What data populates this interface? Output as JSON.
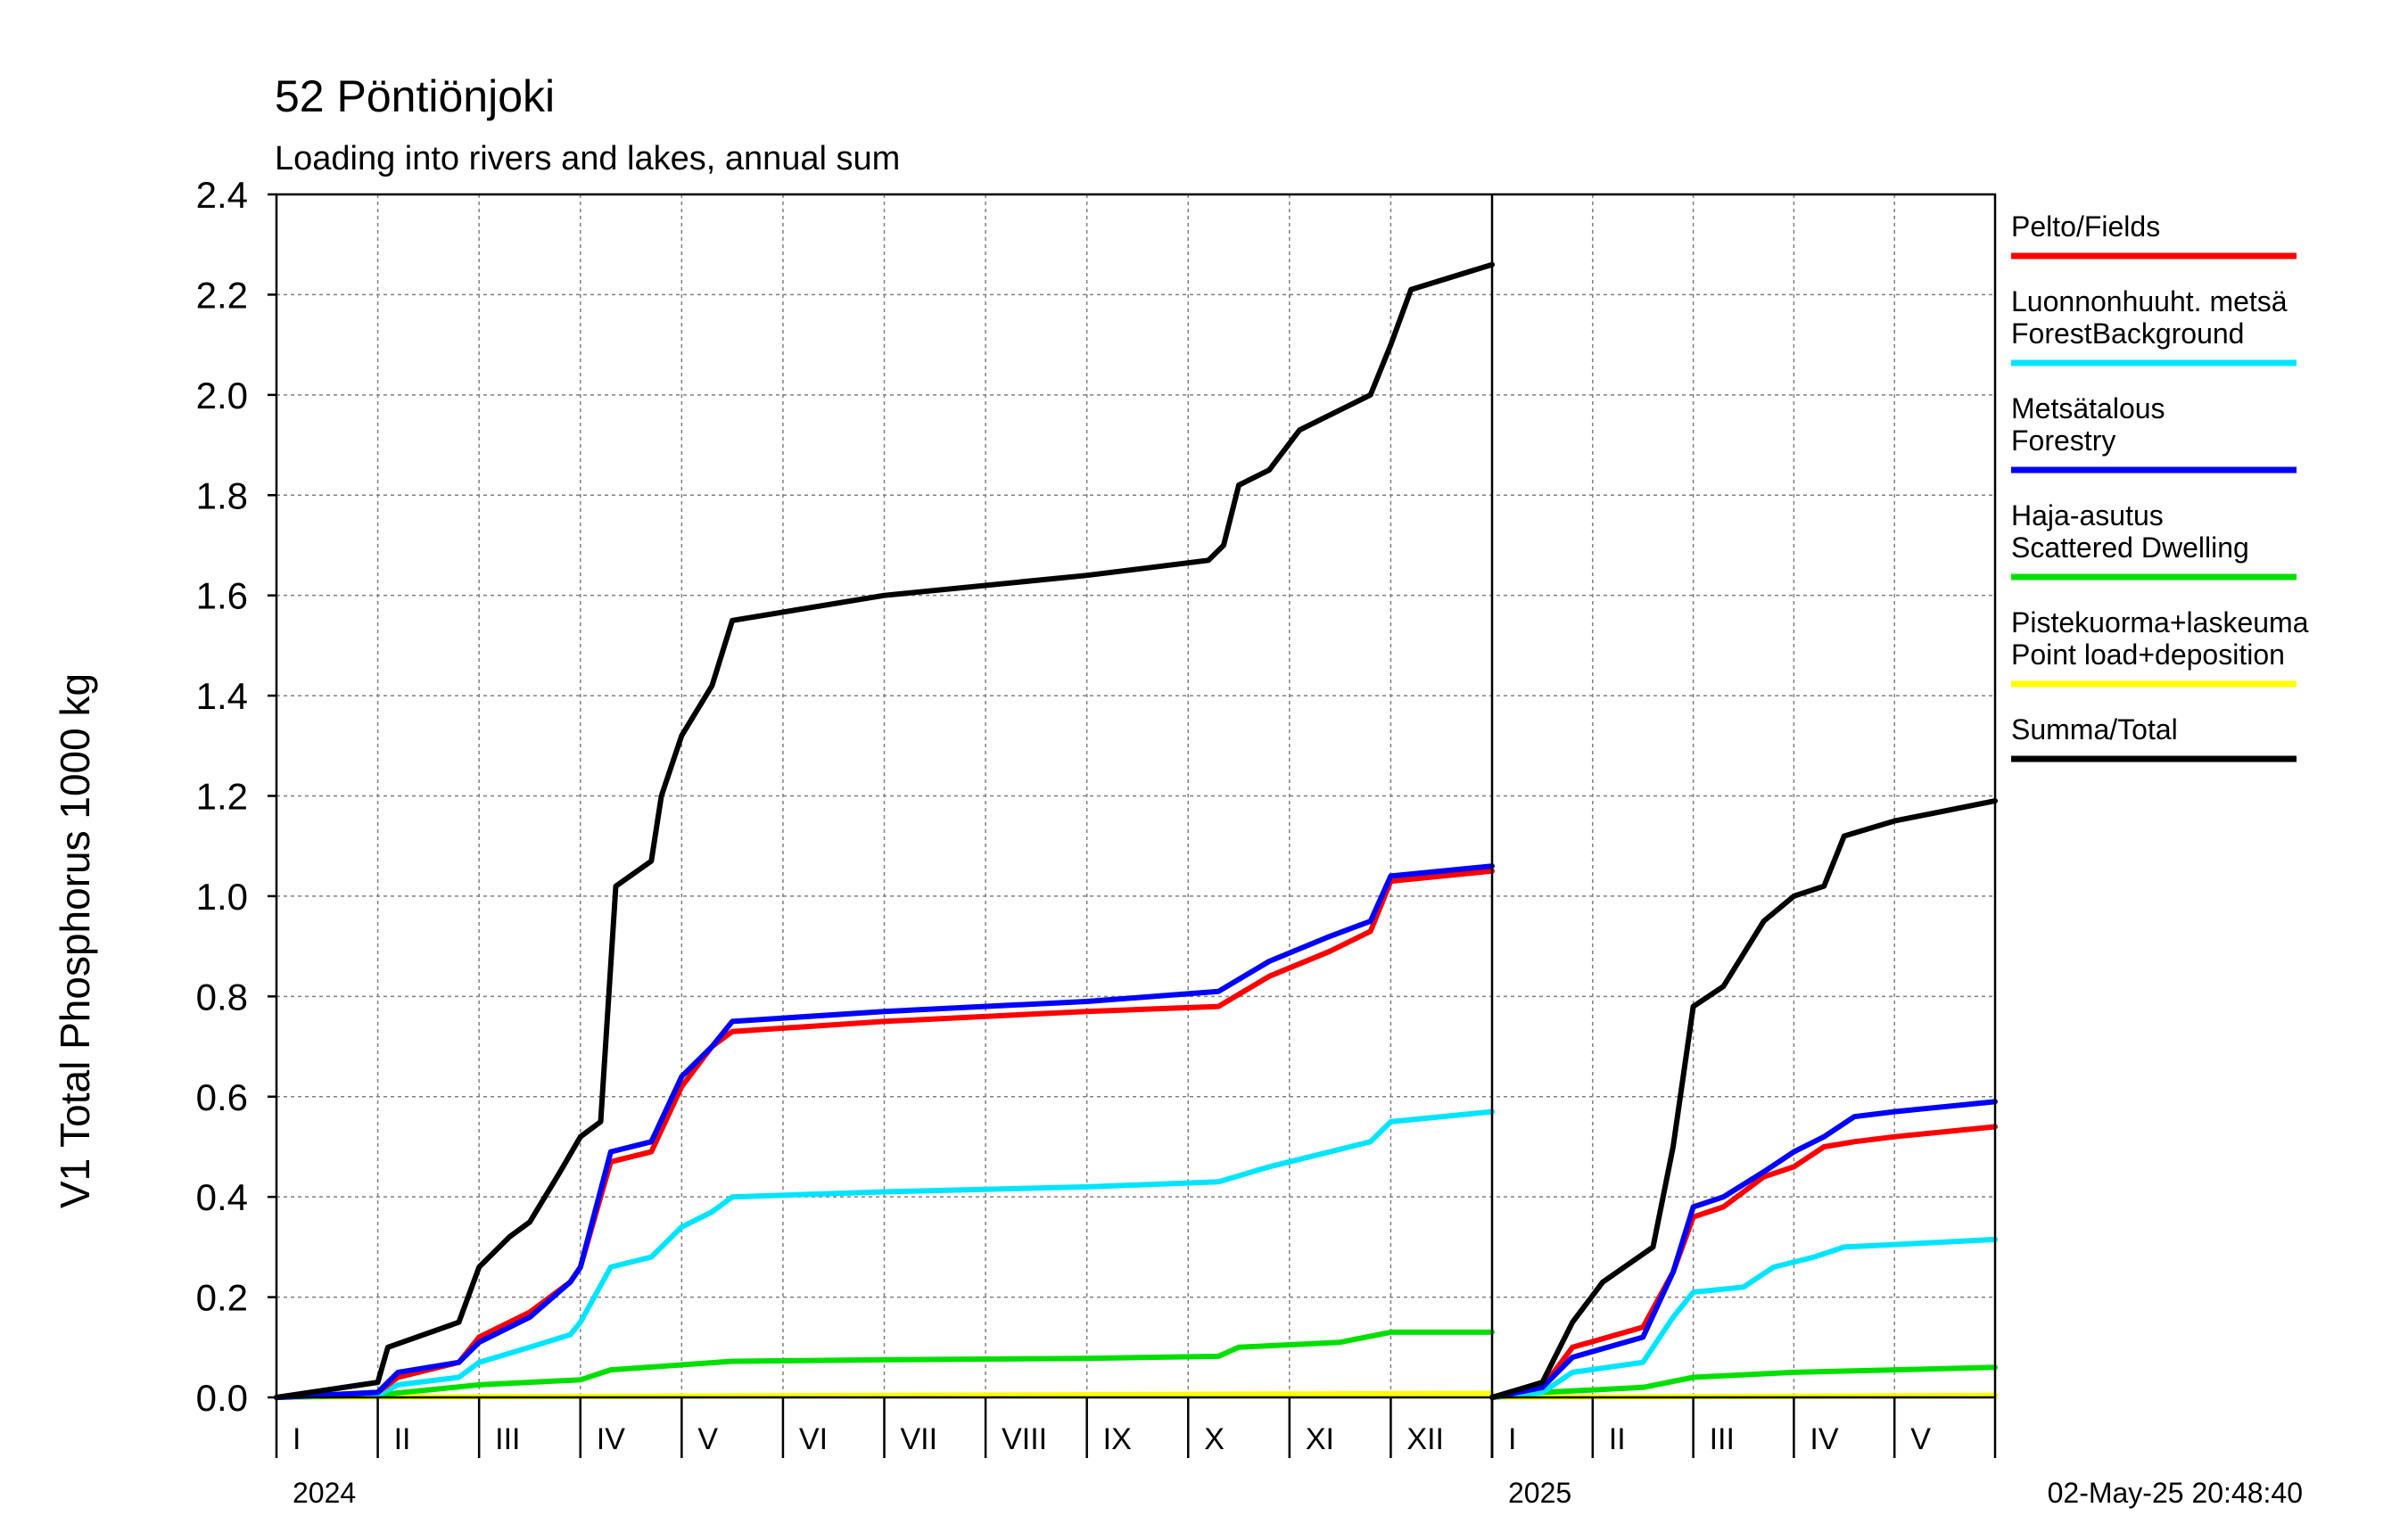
{
  "chart_data": {
    "type": "line",
    "title": "52 Pöntiönjoki",
    "subtitle": "Loading into rivers and lakes, annual sum",
    "ylabel": "V1 Total Phosphorus 1000 kg",
    "ylim": [
      0,
      2.4
    ],
    "yticks": [
      "0.0",
      "0.2",
      "0.4",
      "0.6",
      "0.8",
      "1.0",
      "1.2",
      "1.4",
      "1.6",
      "1.8",
      "2.0",
      "2.2",
      "2.4"
    ],
    "grid": true,
    "legend_position": "right",
    "timestamp": "02-May-25 20:48:40",
    "panels": [
      {
        "year": "2024",
        "months": [
          "I",
          "II",
          "III",
          "IV",
          "V",
          "VI",
          "VII",
          "VIII",
          "IX",
          "X",
          "XI",
          "XII"
        ],
        "series": [
          {
            "key": "fields",
            "x": [
              0,
              1,
              1.2,
              1.8,
              2.0,
              2.5,
              2.9,
              3.0,
              3.3,
              3.7,
              4.0,
              4.3,
              4.5,
              6,
              8,
              9.3,
              9.8,
              10.4,
              10.8,
              11,
              12
            ],
            "y": [
              0,
              0.01,
              0.04,
              0.07,
              0.12,
              0.17,
              0.23,
              0.26,
              0.47,
              0.49,
              0.62,
              0.7,
              0.73,
              0.75,
              0.77,
              0.78,
              0.84,
              0.89,
              0.93,
              1.03,
              1.05
            ]
          },
          {
            "key": "forest_background",
            "x": [
              0,
              1,
              1.2,
              1.8,
              2.0,
              2.5,
              2.9,
              3.0,
              3.3,
              3.7,
              4.0,
              4.3,
              4.5,
              6,
              8,
              9.3,
              9.8,
              10.4,
              10.8,
              11,
              12
            ],
            "y": [
              0,
              0.005,
              0.025,
              0.04,
              0.07,
              0.1,
              0.125,
              0.15,
              0.26,
              0.28,
              0.34,
              0.37,
              0.4,
              0.41,
              0.42,
              0.43,
              0.46,
              0.49,
              0.51,
              0.55,
              0.57
            ]
          },
          {
            "key": "forestry",
            "x": [
              0,
              1,
              1.2,
              1.8,
              2.0,
              2.5,
              2.9,
              3.0,
              3.3,
              3.7,
              4.0,
              4.3,
              4.5,
              6,
              8,
              9.3,
              9.8,
              10.4,
              10.8,
              11,
              12
            ],
            "y": [
              0,
              0.01,
              0.05,
              0.07,
              0.11,
              0.16,
              0.23,
              0.26,
              0.49,
              0.51,
              0.64,
              0.7,
              0.75,
              0.77,
              0.79,
              0.81,
              0.87,
              0.92,
              0.95,
              1.04,
              1.06
            ]
          },
          {
            "key": "scattered_dwelling",
            "x": [
              0,
              1,
              1.5,
              2,
              3,
              3.3,
              4,
              4.5,
              6,
              8,
              9.3,
              9.5,
              10.5,
              11,
              12
            ],
            "y": [
              0,
              0.005,
              0.015,
              0.025,
              0.035,
              0.055,
              0.065,
              0.072,
              0.075,
              0.078,
              0.082,
              0.1,
              0.11,
              0.13,
              0.13
            ]
          },
          {
            "key": "point_load",
            "x": [
              0,
              3,
              6,
              9,
              12
            ],
            "y": [
              0,
              0.002,
              0.004,
              0.006,
              0.008
            ]
          },
          {
            "key": "total",
            "x": [
              0,
              1,
              1.1,
              1.8,
              2.0,
              2.3,
              2.5,
              2.8,
              3.0,
              3.2,
              3.35,
              3.7,
              3.8,
              4.0,
              4.3,
              4.5,
              6,
              8,
              9.2,
              9.35,
              9.5,
              9.8,
              10.1,
              10.5,
              10.8,
              11,
              11.2,
              12
            ],
            "y": [
              0,
              0.03,
              0.1,
              0.15,
              0.26,
              0.32,
              0.35,
              0.45,
              0.52,
              0.55,
              1.02,
              1.07,
              1.2,
              1.32,
              1.42,
              1.55,
              1.6,
              1.64,
              1.67,
              1.7,
              1.82,
              1.85,
              1.93,
              1.97,
              2.0,
              2.1,
              2.21,
              2.26
            ]
          }
        ]
      },
      {
        "year": "2025",
        "months": [
          "I",
          "II",
          "III",
          "IV",
          "V"
        ],
        "series": [
          {
            "key": "fields",
            "x": [
              0,
              0.5,
              0.8,
              1.5,
              1.8,
              2.0,
              2.3,
              2.7,
              3.0,
              3.3,
              3.6,
              4.0,
              5.0
            ],
            "y": [
              0,
              0.02,
              0.1,
              0.14,
              0.25,
              0.36,
              0.38,
              0.44,
              0.46,
              0.5,
              0.51,
              0.52,
              0.54
            ]
          },
          {
            "key": "forest_background",
            "x": [
              0,
              0.5,
              0.8,
              1.5,
              1.8,
              2.0,
              2.5,
              2.8,
              3.2,
              3.5,
              4.0,
              5.0
            ],
            "y": [
              0,
              0.01,
              0.05,
              0.07,
              0.16,
              0.21,
              0.22,
              0.26,
              0.28,
              0.3,
              0.305,
              0.315
            ]
          },
          {
            "key": "forestry",
            "x": [
              0,
              0.5,
              0.8,
              1.5,
              1.8,
              2.0,
              2.3,
              2.7,
              3.0,
              3.3,
              3.6,
              4.0,
              5.0
            ],
            "y": [
              0,
              0.02,
              0.08,
              0.12,
              0.25,
              0.38,
              0.4,
              0.45,
              0.49,
              0.52,
              0.56,
              0.57,
              0.59
            ]
          },
          {
            "key": "scattered_dwelling",
            "x": [
              0,
              0.5,
              1.0,
              1.5,
              2.0,
              3.0,
              4.0,
              5.0
            ],
            "y": [
              0,
              0.01,
              0.015,
              0.02,
              0.04,
              0.05,
              0.055,
              0.06
            ]
          },
          {
            "key": "point_load",
            "x": [
              0,
              2.5,
              5.0
            ],
            "y": [
              0,
              0.002,
              0.004
            ]
          },
          {
            "key": "total",
            "x": [
              0,
              0.5,
              0.8,
              1.1,
              1.6,
              1.8,
              2.0,
              2.3,
              2.7,
              3.0,
              3.3,
              3.5,
              4.0,
              5.0
            ],
            "y": [
              0,
              0.03,
              0.15,
              0.23,
              0.3,
              0.5,
              0.78,
              0.82,
              0.95,
              1.0,
              1.02,
              1.12,
              1.15,
              1.19
            ]
          }
        ]
      }
    ],
    "legend": [
      {
        "key": "fields",
        "lines": [
          "Pelto/Fields"
        ],
        "color": "#ff0000"
      },
      {
        "key": "forest_background",
        "lines": [
          "Luonnonhuuht. metsä",
          "ForestBackground"
        ],
        "color": "#00e5ff"
      },
      {
        "key": "forestry",
        "lines": [
          "Metsätalous",
          "Forestry"
        ],
        "color": "#0000ff"
      },
      {
        "key": "scattered_dwelling",
        "lines": [
          "Haja-asutus",
          "Scattered Dwelling"
        ],
        "color": "#00e000"
      },
      {
        "key": "point_load",
        "lines": [
          "Pistekuorma+laskeuma",
          "Point load+deposition"
        ],
        "color": "#ffff00"
      },
      {
        "key": "total",
        "lines": [
          "Summa/Total"
        ],
        "color": "#000000"
      }
    ]
  }
}
